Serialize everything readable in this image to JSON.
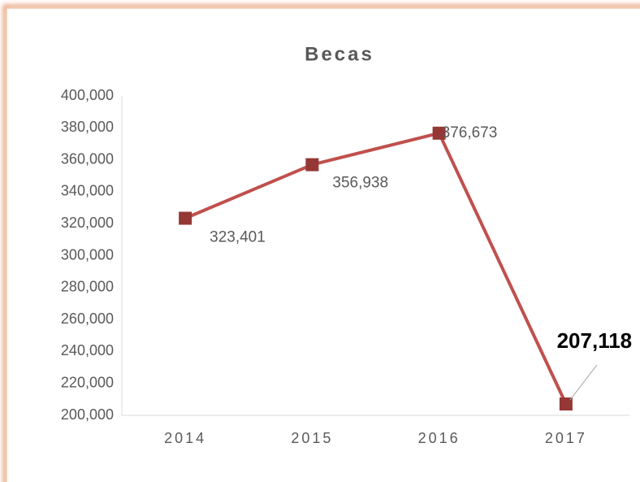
{
  "chart_data": {
    "type": "line",
    "title": "Becas",
    "categories": [
      "2014",
      "2015",
      "2016",
      "2017"
    ],
    "series": [
      {
        "name": "Becas",
        "color": "#c0504d",
        "marker_color": "#953735",
        "values": [
          323401,
          356938,
          376673,
          207118
        ],
        "value_labels": [
          "323,401",
          "356,938",
          "376,673",
          "207,118"
        ]
      }
    ],
    "ylim": [
      200000,
      400000
    ],
    "yticks": [
      {
        "value": 200000,
        "label": "200,000"
      },
      {
        "value": 220000,
        "label": "220,000"
      },
      {
        "value": 240000,
        "label": "240,000"
      },
      {
        "value": 260000,
        "label": "260,000"
      },
      {
        "value": 280000,
        "label": "280,000"
      },
      {
        "value": 300000,
        "label": "300,000"
      },
      {
        "value": 320000,
        "label": "320,000"
      },
      {
        "value": 340000,
        "label": "340,000"
      },
      {
        "value": 360000,
        "label": "360,000"
      },
      {
        "value": 380000,
        "label": "380,000"
      },
      {
        "value": 400000,
        "label": "400,000"
      }
    ],
    "grid": false,
    "legend": false
  }
}
